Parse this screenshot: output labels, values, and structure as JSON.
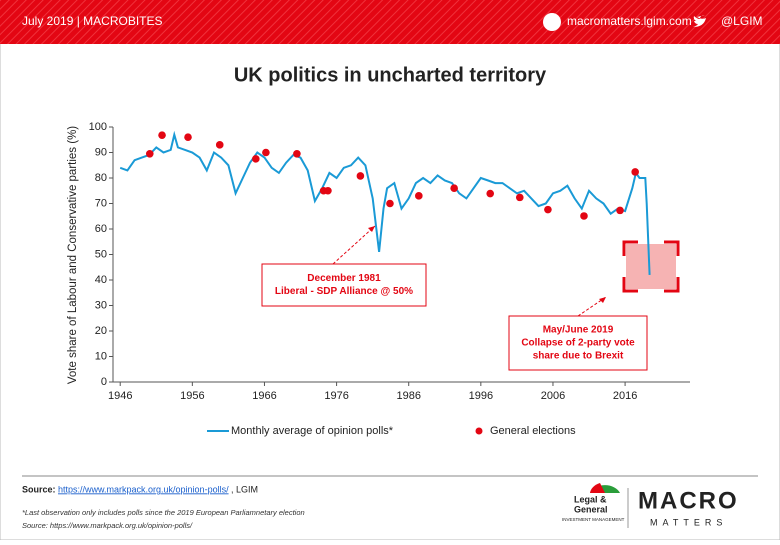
{
  "header": {
    "left": "July 2019  |  MACROBITES",
    "site": "macromatters.lgim.com",
    "handle": "@LGIM"
  },
  "chart_data": {
    "type": "line",
    "title": "UK politics in uncharted territory",
    "y_label": "Vote share of Labour and Conservative parties (%)",
    "xlim": [
      1945,
      2025
    ],
    "ylim": [
      0,
      100
    ],
    "xticks": [
      1946,
      1956,
      1966,
      1976,
      1986,
      1996,
      2006,
      2016
    ],
    "yticks": [
      0,
      10,
      20,
      30,
      40,
      50,
      60,
      70,
      80,
      90,
      100
    ],
    "legend": "bottom",
    "series": [
      {
        "name": "Monthly average of opinion polls*",
        "type": "line",
        "color": "#1a9ad6",
        "x": [
          1946,
          1947,
          1948,
          1949,
          1950,
          1951,
          1952,
          1953,
          1953.5,
          1954,
          1955,
          1956,
          1957,
          1958,
          1959,
          1960,
          1961,
          1962,
          1963,
          1964,
          1965,
          1966,
          1967,
          1968,
          1969,
          1970,
          1971,
          1972,
          1973,
          1974,
          1975,
          1976,
          1977,
          1978,
          1979,
          1980,
          1981,
          1981.9,
          1982.5,
          1983,
          1984,
          1985,
          1986,
          1987,
          1988,
          1989,
          1990,
          1991,
          1992,
          1993,
          1994,
          1995,
          1996,
          1997,
          1998,
          1999,
          2000,
          2001,
          2002,
          2003,
          2004,
          2005,
          2006,
          2007,
          2008,
          2009,
          2010,
          2011,
          2012,
          2013,
          2014,
          2015,
          2016,
          2017,
          2017.5,
          2018,
          2018.8,
          2019,
          2019.4
        ],
        "values": [
          84,
          83,
          87,
          88,
          89,
          92,
          90,
          91,
          97,
          92,
          91,
          90,
          88,
          83,
          90,
          88,
          85,
          74,
          80,
          86,
          90,
          88,
          84,
          82,
          86,
          89,
          88,
          83,
          71,
          76,
          82,
          80,
          84,
          85,
          88,
          85,
          72,
          51,
          68,
          76,
          78,
          68,
          72,
          78,
          80,
          78,
          81,
          79,
          78,
          74,
          72,
          76,
          80,
          79,
          78,
          78,
          76,
          74,
          75,
          72,
          69,
          70,
          74,
          75,
          77,
          72,
          68,
          75,
          72,
          70,
          66,
          68,
          67,
          76,
          82,
          80,
          80,
          70,
          42
        ]
      },
      {
        "name": "General elections",
        "type": "scatter",
        "color": "#e30613",
        "x": [
          1950.1,
          1951.8,
          1955.4,
          1959.8,
          1964.8,
          1966.2,
          1970.5,
          1974.2,
          1974.8,
          1979.3,
          1983.4,
          1987.4,
          1992.3,
          1997.3,
          2001.4,
          2005.3,
          2010.3,
          2015.3,
          2017.4
        ],
        "values": [
          89.5,
          96.8,
          96,
          93,
          87.5,
          90,
          89.5,
          75,
          75,
          80.8,
          70,
          73,
          76,
          73.9,
          72.4,
          67.6,
          65.1,
          67.3,
          82.4
        ]
      }
    ],
    "annotations": [
      {
        "lines": [
          "December 1981",
          "Liberal - SDP Alliance @ 50%"
        ]
      },
      {
        "lines": [
          "May/June 2019",
          "Collapse of 2-party vote",
          "share due to Brexit"
        ]
      }
    ]
  },
  "footer": {
    "source_label": "Source:",
    "source_link": "https://www.markpack.org.uk/opinion-polls/",
    "source_rest": ", LGIM",
    "note1": "*Last observation only includes polls since the 2019 European Parliamnetary election",
    "note2": "Source: https://www.markpack.org.uk/opinion-polls/",
    "logo1a": "Legal &",
    "logo1b": "General",
    "logo1c": "INVESTMENT MANAGEMENT",
    "logo2a": "MACRO",
    "logo2b": "MATTERS"
  }
}
